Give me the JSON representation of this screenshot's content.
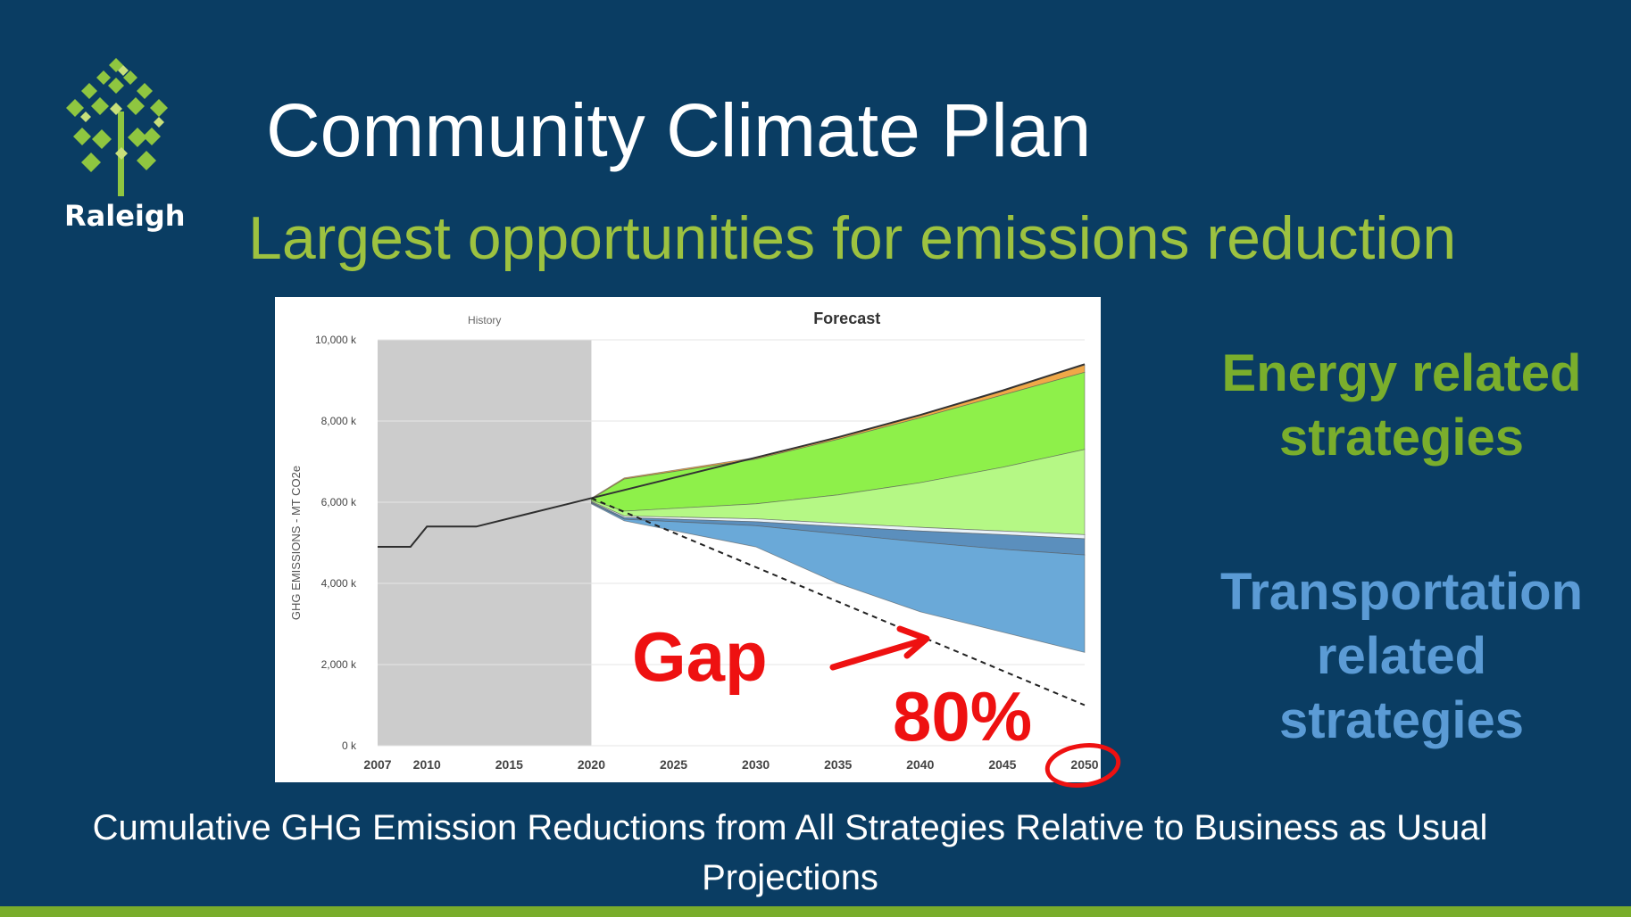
{
  "slide": {
    "logo_text": "Raleigh",
    "title": "Community Climate Plan",
    "subtitle": "Largest opportunities for emissions reduction",
    "energy_label": "Energy related strategies",
    "transport_label": "Transportation related strategies",
    "caption": "Cumulative GHG Emission Reductions from All Strategies Relative to Business as Usual Projections",
    "colors": {
      "background": "#0a3d63",
      "title": "#ffffff",
      "subtitle": "#9dc240",
      "energy": "#7aae2c",
      "transport": "#5b9bd5",
      "footer_bar": "#79ad2b"
    }
  },
  "chart_data": {
    "type": "area",
    "title": "",
    "history_label": "History",
    "forecast_label": "Forecast",
    "xlabel": "",
    "ylabel": "GHG EMISSIONS - MT CO2e",
    "xlim": [
      2007,
      2050
    ],
    "ylim": [
      0,
      10000
    ],
    "x_ticks": [
      2007,
      2010,
      2015,
      2020,
      2025,
      2030,
      2035,
      2040,
      2045,
      2050
    ],
    "y_ticks": [
      0,
      2000,
      4000,
      6000,
      8000,
      10000
    ],
    "y_tick_labels": [
      "0 k",
      "2,000 k",
      "4,000 k",
      "6,000 k",
      "8,000 k",
      "10,000 k"
    ],
    "history_span": [
      2007,
      2020
    ],
    "history_line": {
      "x": [
        2007,
        2009,
        2010,
        2013,
        2016,
        2018,
        2020
      ],
      "y": [
        4900,
        4900,
        5400,
        5400,
        5700,
        5900,
        6100
      ]
    },
    "business_as_usual": {
      "x": [
        2020,
        2025,
        2030,
        2035,
        2040,
        2045,
        2050
      ],
      "y": [
        6100,
        6600,
        7100,
        7600,
        8150,
        8750,
        9400
      ]
    },
    "bands": [
      {
        "group": "energy",
        "color": "#f0a848",
        "upper": [
          6100,
          6600,
          7100,
          7600,
          8150,
          8750,
          9380
        ],
        "lower": [
          6080,
          6570,
          7060,
          7550,
          8080,
          8640,
          9200
        ]
      },
      {
        "group": "energy",
        "color": "#8ef04a",
        "upper": [
          6080,
          6570,
          7060,
          7550,
          8080,
          8640,
          9200
        ],
        "lower": [
          6050,
          5780,
          5960,
          6180,
          6480,
          6860,
          7300
        ]
      },
      {
        "group": "energy",
        "color": "#b5f885",
        "upper": [
          6050,
          5780,
          5960,
          6180,
          6480,
          6860,
          7300
        ],
        "lower": [
          6020,
          5660,
          5590,
          5480,
          5380,
          5290,
          5200
        ]
      },
      {
        "group": "energy",
        "color": "#e9f2f8",
        "upper": [
          6020,
          5660,
          5590,
          5480,
          5380,
          5290,
          5200
        ],
        "lower": [
          6000,
          5620,
          5520,
          5400,
          5290,
          5200,
          5100
        ]
      },
      {
        "group": "transport",
        "color": "#5b8fbd",
        "upper": [
          6000,
          5620,
          5520,
          5400,
          5290,
          5200,
          5100
        ],
        "lower": [
          5980,
          5580,
          5420,
          5220,
          5020,
          4840,
          4700
        ]
      },
      {
        "group": "transport",
        "color": "#6aa9d8",
        "upper": [
          5980,
          5580,
          5420,
          5220,
          5020,
          4840,
          4700
        ],
        "lower": [
          5960,
          5540,
          4900,
          4000,
          3300,
          2800,
          2300
        ]
      }
    ],
    "band_x": [
      2020,
      2022,
      2030,
      2035,
      2040,
      2045,
      2050
    ],
    "target_line": {
      "x": [
        2020,
        2050
      ],
      "y": [
        6100,
        1000
      ]
    },
    "annotations": {
      "gap": "Gap",
      "pct": "80%",
      "circled_tick": "2050"
    }
  }
}
